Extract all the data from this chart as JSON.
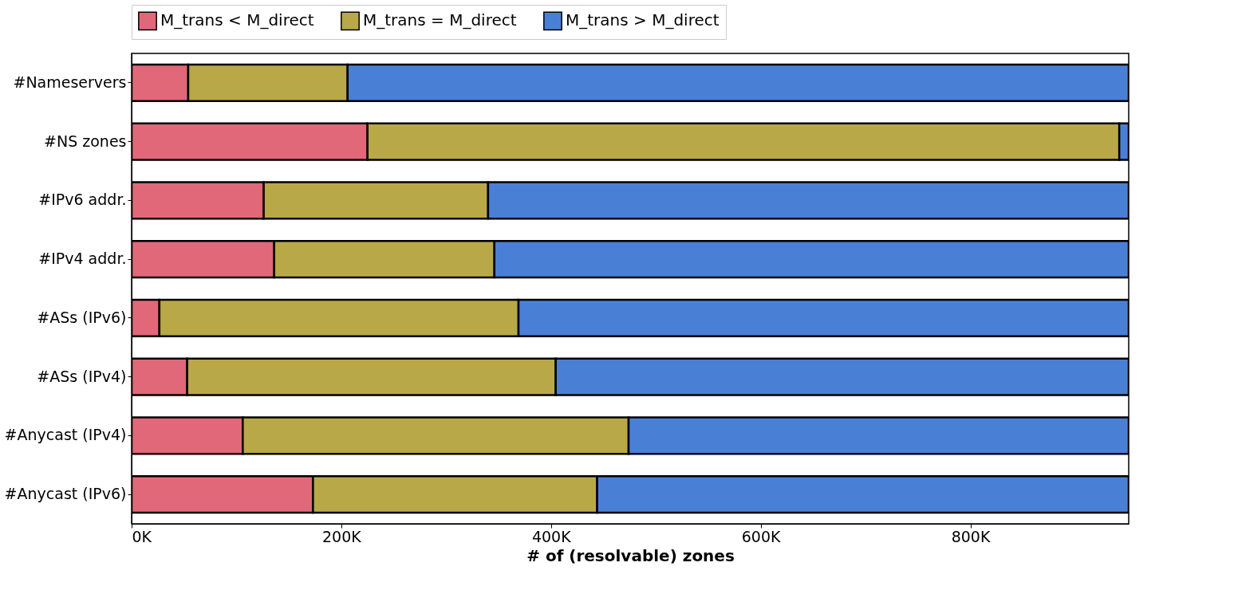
{
  "chart_data": {
    "type": "bar",
    "orientation": "horizontal",
    "stacked": true,
    "xlabel": "# of (resolvable) zones",
    "categories": [
      "#Nameservers",
      "#NS zones",
      "#IPv6 addr.",
      "#IPv4 addr.",
      "#ASs (IPv6)",
      "#ASs (IPv4)",
      "#Anycast (IPv4)",
      "#Anycast (IPv6)"
    ],
    "series": [
      {
        "name": "M_trans < M_direct",
        "color": "#e06878",
        "values": [
          54000,
          225000,
          126000,
          136000,
          26500,
          53000,
          106000,
          173000
        ]
      },
      {
        "name": "M_trans = M_direct",
        "color": "#b8a848",
        "values": [
          152000,
          717000,
          214000,
          210000,
          342500,
          351500,
          368000,
          271000
        ]
      },
      {
        "name": "M_trans > M_direct",
        "color": "#4a7fd6",
        "values": [
          745000,
          9000,
          611000,
          605000,
          582000,
          546500,
          477000,
          507000
        ]
      }
    ],
    "xlim": [
      0,
      951000
    ],
    "xticks": [
      {
        "value": 0,
        "label": "0K"
      },
      {
        "value": 200000,
        "label": "200K"
      },
      {
        "value": 400000,
        "label": "400K"
      },
      {
        "value": 600000,
        "label": "600K"
      },
      {
        "value": 800000,
        "label": "800K"
      }
    ],
    "legend": "top",
    "grid": false
  }
}
